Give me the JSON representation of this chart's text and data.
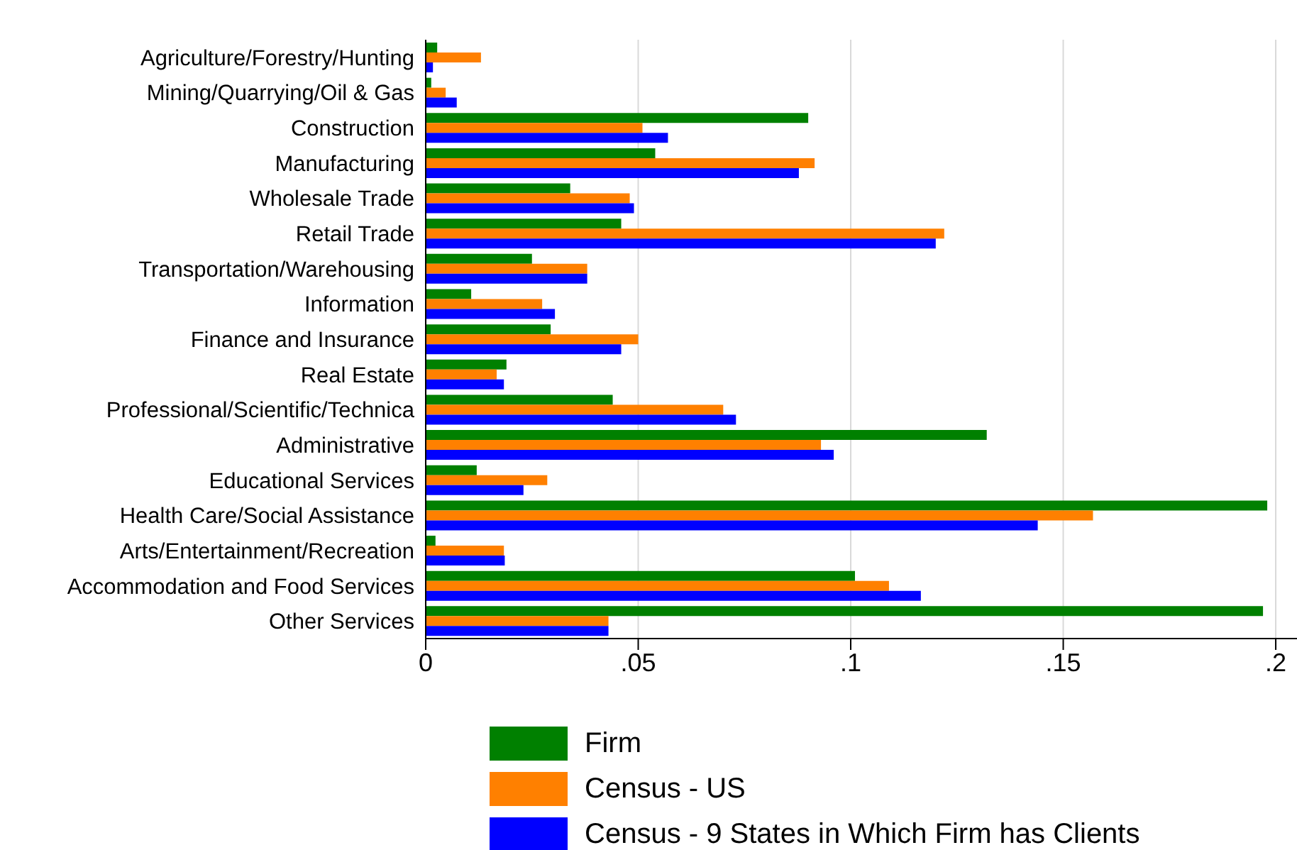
{
  "chart_data": {
    "type": "bar",
    "orientation": "horizontal",
    "categories": [
      "Agriculture/Forestry/Hunting",
      "Mining/Quarrying/Oil & Gas",
      "Construction",
      "Manufacturing",
      "Wholesale Trade",
      "Retail Trade",
      "Transportation/Warehousing",
      "Information",
      "Finance and Insurance",
      "Real Estate",
      "Professional/Scientific/Technica",
      "Administrative",
      "Educational Services",
      "Health Care/Social Assistance",
      "Arts/Entertainment/Recreation",
      "Accommodation and Food Services",
      "Other Services"
    ],
    "series": [
      {
        "name": "Firm",
        "color": "#008000",
        "values": [
          0.0027,
          0.0013,
          0.09,
          0.054,
          0.034,
          0.046,
          0.025,
          0.0107,
          0.0294,
          0.019,
          0.044,
          0.132,
          0.012,
          0.198,
          0.0023,
          0.101,
          0.197
        ]
      },
      {
        "name": "Census - US",
        "color": "#ff8000",
        "values": [
          0.013,
          0.0047,
          0.051,
          0.0915,
          0.048,
          0.122,
          0.038,
          0.0274,
          0.05,
          0.0167,
          0.07,
          0.093,
          0.0286,
          0.157,
          0.0184,
          0.109,
          0.043
        ]
      },
      {
        "name": "Census - 9 States in Which Firm has Clients",
        "color": "#0000ff",
        "values": [
          0.0017,
          0.0073,
          0.057,
          0.0878,
          0.049,
          0.12,
          0.038,
          0.0304,
          0.046,
          0.0184,
          0.073,
          0.096,
          0.023,
          0.144,
          0.0186,
          0.1165,
          0.043
        ]
      }
    ],
    "xlim": [
      0,
      0.205
    ],
    "xticks": [
      0,
      {
        "value": 0.05,
        "label": ".05"
      },
      {
        "value": 0.1,
        "label": ".1"
      },
      {
        "value": 0.15,
        "label": ".15"
      },
      {
        "value": 0.2,
        "label": ".2"
      }
    ],
    "grid": "x",
    "legend": "bottom"
  }
}
